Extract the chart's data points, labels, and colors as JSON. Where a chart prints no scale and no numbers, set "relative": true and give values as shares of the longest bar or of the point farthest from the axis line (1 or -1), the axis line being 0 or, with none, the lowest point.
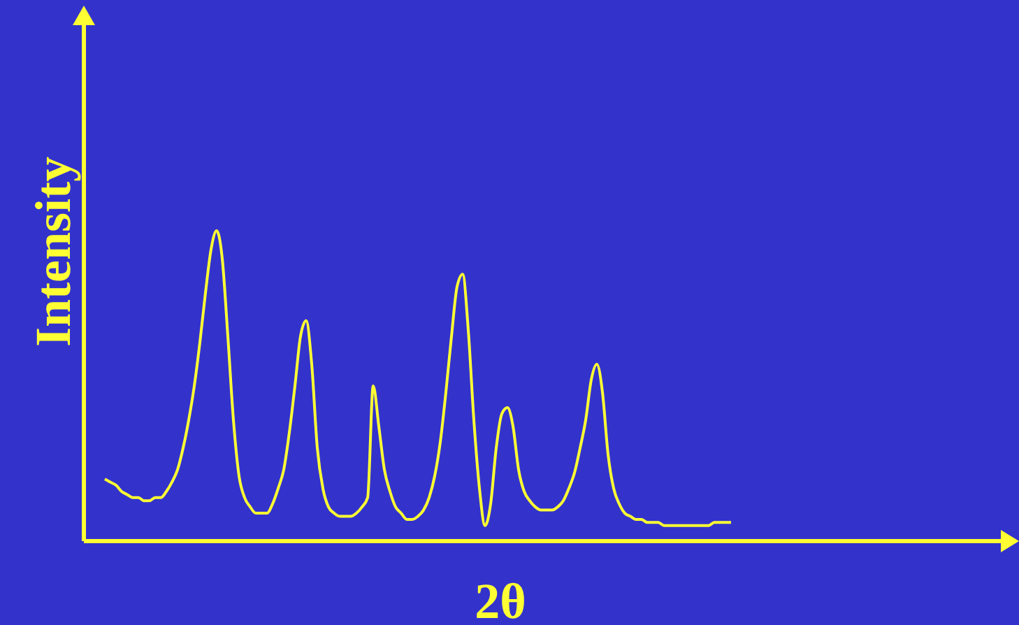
{
  "chart_data": {
    "type": "line",
    "relative": true,
    "xlabel": "2θ",
    "ylabel": "Intensity",
    "categories": [
      null,
      null,
      null,
      null,
      null,
      null,
      null,
      null,
      null,
      null,
      null,
      null,
      null,
      null,
      null,
      null,
      null,
      null,
      null,
      null,
      null,
      null,
      null,
      null,
      null,
      null,
      null,
      null,
      null,
      null,
      null,
      null,
      null,
      null,
      null,
      null,
      null,
      null,
      null,
      null,
      null,
      null,
      null,
      null,
      null,
      null,
      null,
      null,
      null,
      null,
      null,
      null,
      null,
      null,
      null,
      null,
      null,
      null,
      null,
      null,
      null,
      null,
      null,
      null,
      null,
      null,
      null,
      null,
      null,
      null,
      null,
      null,
      null,
      null,
      null,
      null,
      null,
      null,
      null,
      null,
      null,
      null,
      null,
      null,
      null,
      null,
      null,
      null,
      null,
      null,
      null,
      null,
      null,
      null,
      null,
      null,
      null,
      null,
      null,
      null,
      null,
      null,
      null,
      null,
      null,
      null,
      null,
      null,
      null,
      null,
      null,
      null,
      null
    ],
    "series": [
      {
        "color": "#ffff33",
        "values": [
          0.2,
          0.19,
          0.18,
          0.16,
          0.15,
          0.14,
          0.14,
          0.13,
          0.13,
          0.14,
          0.14,
          0.16,
          0.19,
          0.23,
          0.3,
          0.39,
          0.5,
          0.64,
          0.8,
          0.94,
          1,
          0.91,
          0.66,
          0.39,
          0.21,
          0.14,
          0.11,
          0.09,
          0.09,
          0.09,
          0.12,
          0.17,
          0.23,
          0.35,
          0.5,
          0.66,
          0.71,
          0.57,
          0.3,
          0.17,
          0.11,
          0.09,
          0.08,
          0.08,
          0.08,
          0.09,
          0.11,
          0.14,
          0.5,
          0.37,
          0.23,
          0.16,
          0.11,
          0.09,
          0.07,
          0.07,
          0.08,
          0.1,
          0.14,
          0.21,
          0.32,
          0.48,
          0.66,
          0.82,
          0.86,
          0.68,
          0.39,
          0.17,
          0.05,
          0.12,
          0.3,
          0.41,
          0.43,
          0.37,
          0.23,
          0.16,
          0.13,
          0.11,
          0.1,
          0.1,
          0.1,
          0.11,
          0.13,
          0.17,
          0.22,
          0.3,
          0.39,
          0.52,
          0.57,
          0.48,
          0.28,
          0.17,
          0.12,
          0.09,
          0.08,
          0.07,
          0.07,
          0.06,
          0.06,
          0.06,
          0.05,
          0.05,
          0.05,
          0.05,
          0.05,
          0.05,
          0.05,
          0.05,
          0.05,
          0.06,
          0.06,
          0.06,
          0.06
        ]
      }
    ]
  }
}
